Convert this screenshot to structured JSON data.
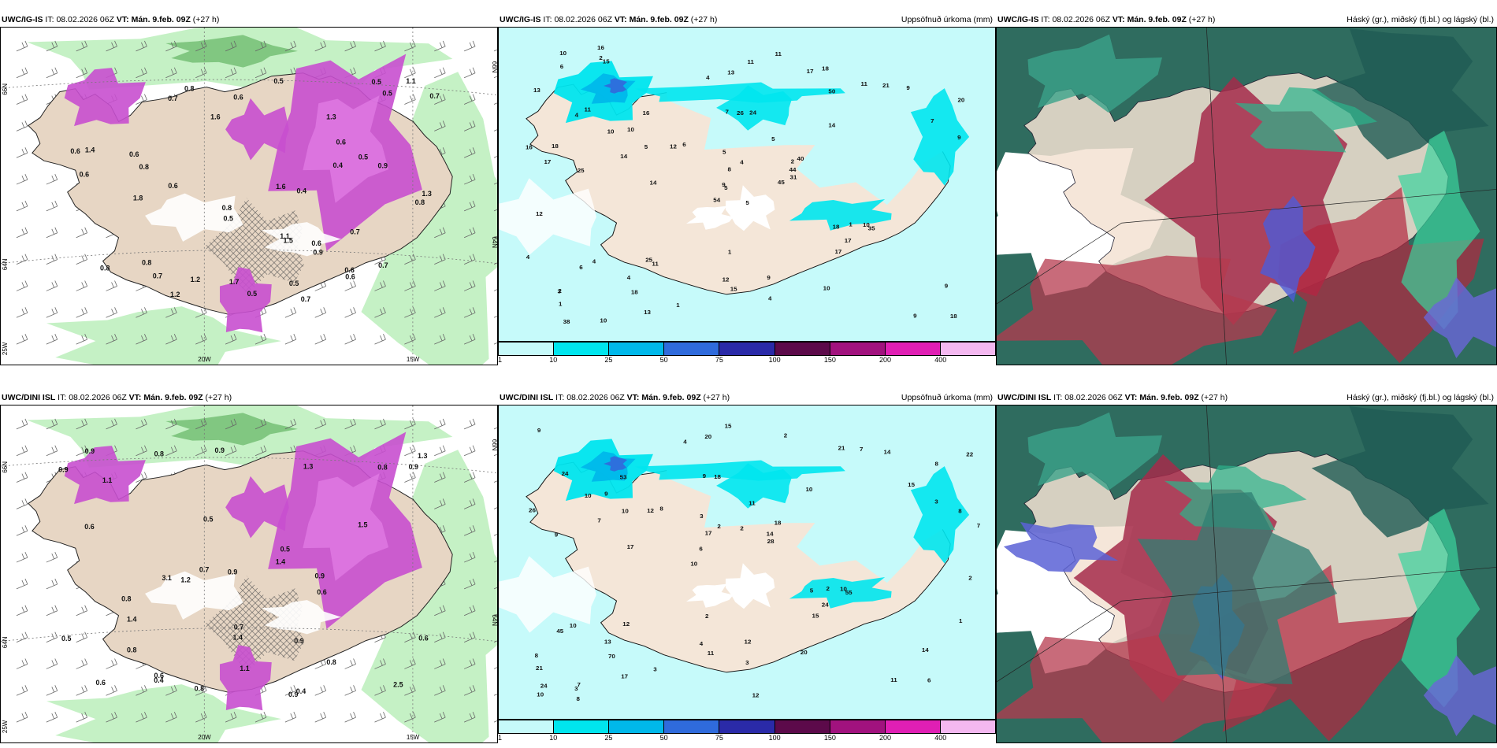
{
  "panels": [
    {
      "model": "UWC/IG-IS",
      "it_label": "IT:",
      "it_value": "08.02.2026 06Z",
      "vt_label": "VT:",
      "vt_value": "Mán. 9.feb. 09Z",
      "lead": "(+27 h)",
      "right_title": ""
    },
    {
      "model": "UWC/IG-IS",
      "it_label": "IT:",
      "it_value": "08.02.2026 06Z",
      "vt_label": "VT:",
      "vt_value": "Mán. 9.feb. 09Z",
      "lead": "(+27 h)",
      "right_title": "Uppsöfnuð úrkoma (mm)"
    },
    {
      "model": "UWC/IG-IS",
      "it_label": "IT:",
      "it_value": "08.02.2026 06Z",
      "vt_label": "VT:",
      "vt_value": "Mán. 9.feb. 09Z",
      "lead": "(+27 h)",
      "right_title": "Háský (gr.), miðský (fj.bl.) og lágský (bl.)"
    },
    {
      "model": "UWC/DINI ISL",
      "it_label": "IT:",
      "it_value": "08.02.2026 06Z",
      "vt_label": "VT:",
      "vt_value": "Mán. 9.feb. 09Z",
      "lead": "(+27 h)",
      "right_title": ""
    },
    {
      "model": "UWC/DINI ISL",
      "it_label": "IT:",
      "it_value": "08.02.2026 06Z",
      "vt_label": "VT:",
      "vt_value": "Mán. 9.feb. 09Z",
      "lead": "(+27 h)",
      "right_title": "Uppsöfnuð úrkoma (mm)"
    },
    {
      "model": "UWC/DINI ISL",
      "it_label": "IT:",
      "it_value": "08.02.2026 06Z",
      "vt_label": "VT:",
      "vt_value": "Mán. 9.feb. 09Z",
      "lead": "(+27 h)",
      "right_title": "Háský (gr.), miðský (fj.bl.) og lágský (bl.)"
    }
  ],
  "axis_labels": {
    "lon_20w": "20W",
    "lon_15w": "15W",
    "lat_66n": "66N",
    "lat_64n": "64N",
    "lat_25w": "25W"
  },
  "colorbar": {
    "levels": [
      "1",
      "10",
      "25",
      "50",
      "75",
      "100",
      "150",
      "200",
      "400"
    ],
    "colors": [
      "#c6fafa",
      "#00e5ee",
      "#00b8ea",
      "#2f6bdc",
      "#2a2aa8",
      "#5c0a4a",
      "#a1127e",
      "#e01fb4",
      "#f4b8f0"
    ]
  },
  "precip_labels": {
    "top": [
      "5",
      "4",
      "5",
      "2",
      "2",
      "11",
      "18",
      "24",
      "50",
      "45",
      "15",
      "18",
      "25",
      "20",
      "54",
      "14",
      "10",
      "7",
      "5",
      "4",
      "6",
      "1",
      "18",
      "26",
      "40",
      "35",
      "11",
      "13",
      "17",
      "18",
      "9",
      "9",
      "12",
      "8",
      "16",
      "11",
      "25",
      "9",
      "9",
      "10",
      "11",
      "12",
      "14",
      "17",
      "13",
      "16",
      "44",
      "38",
      "15",
      "31",
      "6",
      "7",
      "13",
      "17",
      "10",
      "4",
      "2",
      "10",
      "9",
      "9",
      "11",
      "14",
      "18",
      "10",
      "21",
      "16",
      "17",
      "4",
      "4",
      "4",
      "1",
      "1",
      "1",
      "5",
      "3",
      "6",
      "10",
      "12",
      "5",
      "4"
    ],
    "bottom": [
      "6",
      "9",
      "8",
      "10",
      "10",
      "7",
      "9",
      "11",
      "10",
      "8",
      "21",
      "70",
      "18",
      "18",
      "55",
      "24",
      "20",
      "7",
      "5",
      "3",
      "6",
      "4",
      "17",
      "53",
      "21",
      "12",
      "11",
      "14",
      "10",
      "12",
      "12",
      "7",
      "15",
      "17",
      "8",
      "14",
      "24",
      "11",
      "28",
      "45",
      "15",
      "22",
      "24",
      "20",
      "13",
      "8",
      "10",
      "12",
      "14",
      "15",
      "17",
      "26",
      "9",
      "7",
      "3",
      "2",
      "4",
      "2",
      "1",
      "2",
      "3",
      "2",
      "10",
      "8",
      "9",
      "10",
      "2",
      "3",
      "3",
      "2"
    ]
  },
  "cloud_panel_note": "",
  "iso_labels": {
    "top": [
      "0.7",
      "0.7",
      "0.8",
      "0.6",
      "0.5",
      "0.5",
      "0.8",
      "0.6",
      "0.5",
      "0.7",
      "0.8",
      "0.6",
      "0.8",
      "1.1",
      "0.4",
      "0.5",
      "0.6",
      "0.5",
      "0.7",
      "0.9",
      "0.6",
      "1.5",
      "1.2",
      "0.6",
      "0.4",
      "0.6",
      "1.8",
      "0.8",
      "0.5",
      "1.6",
      "0.9",
      "1.1",
      "1.3",
      "1.2",
      "0.8",
      "1.7",
      "0.5",
      "1.4",
      "1.3",
      "0.6",
      "0.6",
      "1.6",
      "0.7",
      "0.7"
    ],
    "bottom": [
      "0.8",
      "0.9",
      "0.6",
      "0.8",
      "0.8",
      "1.1",
      "3.1",
      "2.5",
      "0.9",
      "0.5",
      "0.8",
      "1.1",
      "0.7",
      "1.4",
      "1.3",
      "1.4",
      "0.6",
      "0.4",
      "1.2",
      "0.9",
      "0.9",
      "1.3",
      "0.5",
      "0.6",
      "1.5",
      "0.8",
      "0.5",
      "1.4",
      "0.9",
      "0.6",
      "0.9",
      "0.4",
      "0.7",
      "0.9",
      "0.8",
      "0.9",
      "0.6"
    ]
  }
}
